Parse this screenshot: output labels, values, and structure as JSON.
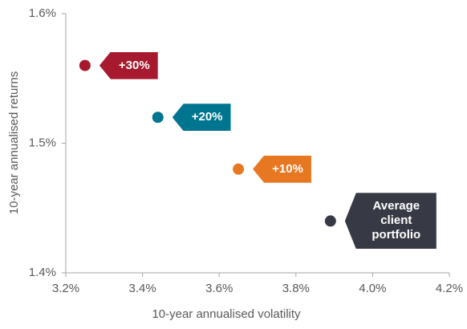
{
  "chart_data": {
    "type": "scatter",
    "x_label": "10-year annualised volatility",
    "y_label": "10-year annualised returns",
    "xlim": [
      3.2,
      4.2
    ],
    "xticks": [
      {
        "value": 3.2,
        "label": "3.2%"
      },
      {
        "value": 3.4,
        "label": "3.4%"
      },
      {
        "value": 3.6,
        "label": "3.6%"
      },
      {
        "value": 3.8,
        "label": "3.8%"
      },
      {
        "value": 4.0,
        "label": "4.0%"
      },
      {
        "value": 4.2,
        "label": "4.2%"
      }
    ],
    "ylim": [
      1.4,
      1.6
    ],
    "yticks": [
      {
        "value": 1.4,
        "label": "1.4%"
      },
      {
        "value": 1.5,
        "label": "1.5%"
      },
      {
        "value": 1.6,
        "label": "1.6%"
      }
    ],
    "grid": false,
    "series": [
      {
        "name": "+30%",
        "color": "#a6192e",
        "x": [
          3.25
        ],
        "values": [
          1.56
        ]
      },
      {
        "name": "+20%",
        "color": "#00758f",
        "x": [
          3.44
        ],
        "values": [
          1.52
        ]
      },
      {
        "name": "+10%",
        "color": "#e87722",
        "x": [
          3.65
        ],
        "values": [
          1.48
        ]
      },
      {
        "name": "Average client portfolio",
        "color": "#373a44",
        "x": [
          3.89
        ],
        "values": [
          1.44
        ]
      }
    ]
  }
}
